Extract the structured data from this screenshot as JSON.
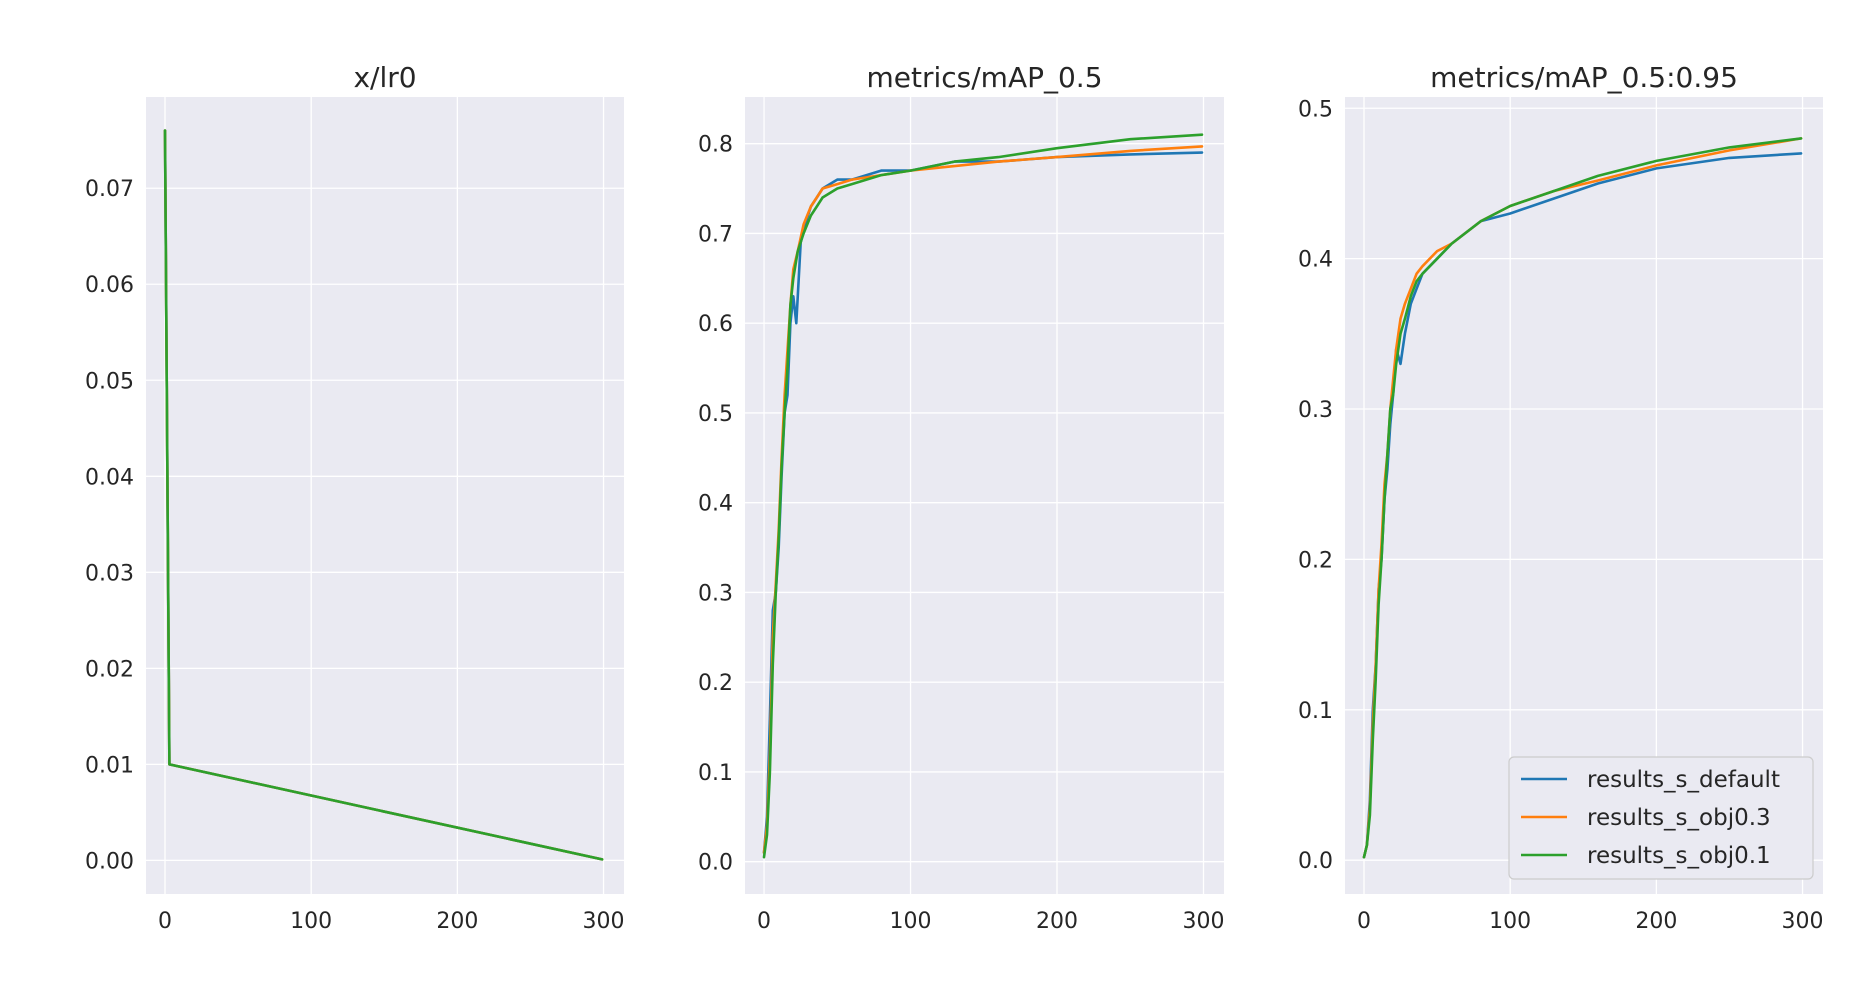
{
  "chart_data": [
    {
      "type": "line",
      "title": "x/lr0",
      "xlim": [
        -13,
        314
      ],
      "ylim": [
        -0.0035,
        0.0795
      ],
      "xticks": [
        0,
        100,
        200,
        300
      ],
      "yticks": [
        0.0,
        0.01,
        0.02,
        0.03,
        0.04,
        0.05,
        0.06,
        0.07
      ],
      "ytick_labels": [
        "0.00",
        "0.01",
        "0.02",
        "0.03",
        "0.04",
        "0.05",
        "0.06",
        "0.07"
      ],
      "grid": true,
      "series": [
        {
          "ref": "default",
          "color": "#1f77b4",
          "points": [
            [
              0,
              0.076
            ],
            [
              3,
              0.01
            ],
            [
              299,
              0.0001
            ]
          ]
        },
        {
          "ref": "obj03",
          "color": "#ff7f0e",
          "points": [
            [
              0,
              0.076
            ],
            [
              3,
              0.01
            ],
            [
              299,
              0.0001
            ]
          ]
        },
        {
          "ref": "obj01",
          "color": "#2ca02c",
          "points": [
            [
              0,
              0.076
            ],
            [
              3,
              0.01
            ],
            [
              299,
              0.0001
            ]
          ]
        }
      ]
    },
    {
      "type": "line",
      "title": "metrics/mAP_0.5",
      "xlim": [
        -13,
        314
      ],
      "ylim": [
        -0.036,
        0.852
      ],
      "xticks": [
        0,
        100,
        200,
        300
      ],
      "yticks": [
        0.0,
        0.1,
        0.2,
        0.3,
        0.4,
        0.5,
        0.6,
        0.7,
        0.8
      ],
      "ytick_labels": [
        "0.0",
        "0.1",
        "0.2",
        "0.3",
        "0.4",
        "0.5",
        "0.6",
        "0.7",
        "0.8"
      ],
      "grid": true,
      "series": [
        {
          "ref": "default",
          "color": "#1f77b4",
          "points": [
            [
              0,
              0.01
            ],
            [
              2,
              0.05
            ],
            [
              4,
              0.16
            ],
            [
              6,
              0.28
            ],
            [
              8,
              0.3
            ],
            [
              10,
              0.35
            ],
            [
              12,
              0.43
            ],
            [
              14,
              0.5
            ],
            [
              16,
              0.52
            ],
            [
              18,
              0.6
            ],
            [
              20,
              0.63
            ],
            [
              22,
              0.6
            ],
            [
              25,
              0.69
            ],
            [
              28,
              0.71
            ],
            [
              32,
              0.73
            ],
            [
              36,
              0.74
            ],
            [
              40,
              0.75
            ],
            [
              50,
              0.76
            ],
            [
              60,
              0.76
            ],
            [
              80,
              0.77
            ],
            [
              100,
              0.77
            ],
            [
              130,
              0.78
            ],
            [
              160,
              0.78
            ],
            [
              200,
              0.785
            ],
            [
              250,
              0.788
            ],
            [
              299,
              0.79
            ]
          ]
        },
        {
          "ref": "obj03",
          "color": "#ff7f0e",
          "points": [
            [
              0,
              0.01
            ],
            [
              2,
              0.04
            ],
            [
              4,
              0.12
            ],
            [
              6,
              0.25
            ],
            [
              8,
              0.31
            ],
            [
              10,
              0.37
            ],
            [
              12,
              0.45
            ],
            [
              14,
              0.52
            ],
            [
              16,
              0.57
            ],
            [
              18,
              0.62
            ],
            [
              20,
              0.66
            ],
            [
              23,
              0.68
            ],
            [
              27,
              0.71
            ],
            [
              32,
              0.73
            ],
            [
              36,
              0.74
            ],
            [
              40,
              0.75
            ],
            [
              50,
              0.755
            ],
            [
              60,
              0.76
            ],
            [
              80,
              0.765
            ],
            [
              100,
              0.77
            ],
            [
              130,
              0.775
            ],
            [
              160,
              0.78
            ],
            [
              200,
              0.785
            ],
            [
              250,
              0.792
            ],
            [
              299,
              0.797
            ]
          ]
        },
        {
          "ref": "obj01",
          "color": "#2ca02c",
          "points": [
            [
              0,
              0.005
            ],
            [
              2,
              0.03
            ],
            [
              4,
              0.1
            ],
            [
              6,
              0.22
            ],
            [
              8,
              0.3
            ],
            [
              10,
              0.36
            ],
            [
              12,
              0.44
            ],
            [
              14,
              0.5
            ],
            [
              16,
              0.55
            ],
            [
              18,
              0.62
            ],
            [
              20,
              0.65
            ],
            [
              23,
              0.68
            ],
            [
              27,
              0.7
            ],
            [
              32,
              0.72
            ],
            [
              36,
              0.73
            ],
            [
              40,
              0.74
            ],
            [
              50,
              0.75
            ],
            [
              60,
              0.755
            ],
            [
              80,
              0.765
            ],
            [
              100,
              0.77
            ],
            [
              130,
              0.78
            ],
            [
              160,
              0.785
            ],
            [
              200,
              0.795
            ],
            [
              250,
              0.805
            ],
            [
              299,
              0.81
            ]
          ]
        }
      ]
    },
    {
      "type": "line",
      "title": "metrics/mAP_0.5:0.95",
      "xlim": [
        -13,
        314
      ],
      "ylim": [
        -0.0225,
        0.5075
      ],
      "xticks": [
        0,
        100,
        200,
        300
      ],
      "yticks": [
        0.0,
        0.1,
        0.2,
        0.3,
        0.4,
        0.5
      ],
      "ytick_labels": [
        "0.0",
        "0.1",
        "0.2",
        "0.3",
        "0.4",
        "0.5"
      ],
      "grid": true,
      "legend": "bottom-right",
      "series": [
        {
          "name": "results_s_default",
          "ref": "default",
          "color": "#1f77b4",
          "points": [
            [
              0,
              0.002
            ],
            [
              2,
              0.01
            ],
            [
              4,
              0.04
            ],
            [
              6,
              0.1
            ],
            [
              8,
              0.13
            ],
            [
              10,
              0.18
            ],
            [
              12,
              0.2
            ],
            [
              14,
              0.24
            ],
            [
              16,
              0.26
            ],
            [
              18,
              0.29
            ],
            [
              20,
              0.31
            ],
            [
              22,
              0.34
            ],
            [
              25,
              0.33
            ],
            [
              28,
              0.35
            ],
            [
              32,
              0.37
            ],
            [
              36,
              0.38
            ],
            [
              40,
              0.39
            ],
            [
              50,
              0.4
            ],
            [
              60,
              0.41
            ],
            [
              80,
              0.425
            ],
            [
              100,
              0.43
            ],
            [
              130,
              0.44
            ],
            [
              160,
              0.45
            ],
            [
              200,
              0.46
            ],
            [
              250,
              0.467
            ],
            [
              299,
              0.47
            ]
          ]
        },
        {
          "name": "results_s_obj0.3",
          "ref": "obj03",
          "color": "#ff7f0e",
          "points": [
            [
              0,
              0.002
            ],
            [
              2,
              0.01
            ],
            [
              4,
              0.035
            ],
            [
              6,
              0.09
            ],
            [
              8,
              0.13
            ],
            [
              10,
              0.18
            ],
            [
              12,
              0.21
            ],
            [
              14,
              0.25
            ],
            [
              16,
              0.27
            ],
            [
              18,
              0.3
            ],
            [
              20,
              0.32
            ],
            [
              22,
              0.34
            ],
            [
              25,
              0.36
            ],
            [
              28,
              0.37
            ],
            [
              32,
              0.38
            ],
            [
              36,
              0.39
            ],
            [
              40,
              0.395
            ],
            [
              50,
              0.405
            ],
            [
              60,
              0.41
            ],
            [
              80,
              0.425
            ],
            [
              100,
              0.435
            ],
            [
              130,
              0.445
            ],
            [
              160,
              0.452
            ],
            [
              200,
              0.462
            ],
            [
              250,
              0.472
            ],
            [
              299,
              0.48
            ]
          ]
        },
        {
          "name": "results_s_obj0.1",
          "ref": "obj01",
          "color": "#2ca02c",
          "points": [
            [
              0,
              0.002
            ],
            [
              2,
              0.01
            ],
            [
              4,
              0.03
            ],
            [
              6,
              0.08
            ],
            [
              8,
              0.12
            ],
            [
              10,
              0.17
            ],
            [
              12,
              0.2
            ],
            [
              14,
              0.24
            ],
            [
              16,
              0.27
            ],
            [
              18,
              0.3
            ],
            [
              20,
              0.31
            ],
            [
              22,
              0.33
            ],
            [
              25,
              0.35
            ],
            [
              28,
              0.36
            ],
            [
              32,
              0.375
            ],
            [
              36,
              0.385
            ],
            [
              40,
              0.39
            ],
            [
              50,
              0.4
            ],
            [
              60,
              0.41
            ],
            [
              80,
              0.425
            ],
            [
              100,
              0.435
            ],
            [
              130,
              0.445
            ],
            [
              160,
              0.455
            ],
            [
              200,
              0.465
            ],
            [
              250,
              0.474
            ],
            [
              299,
              0.48
            ]
          ]
        }
      ]
    }
  ]
}
